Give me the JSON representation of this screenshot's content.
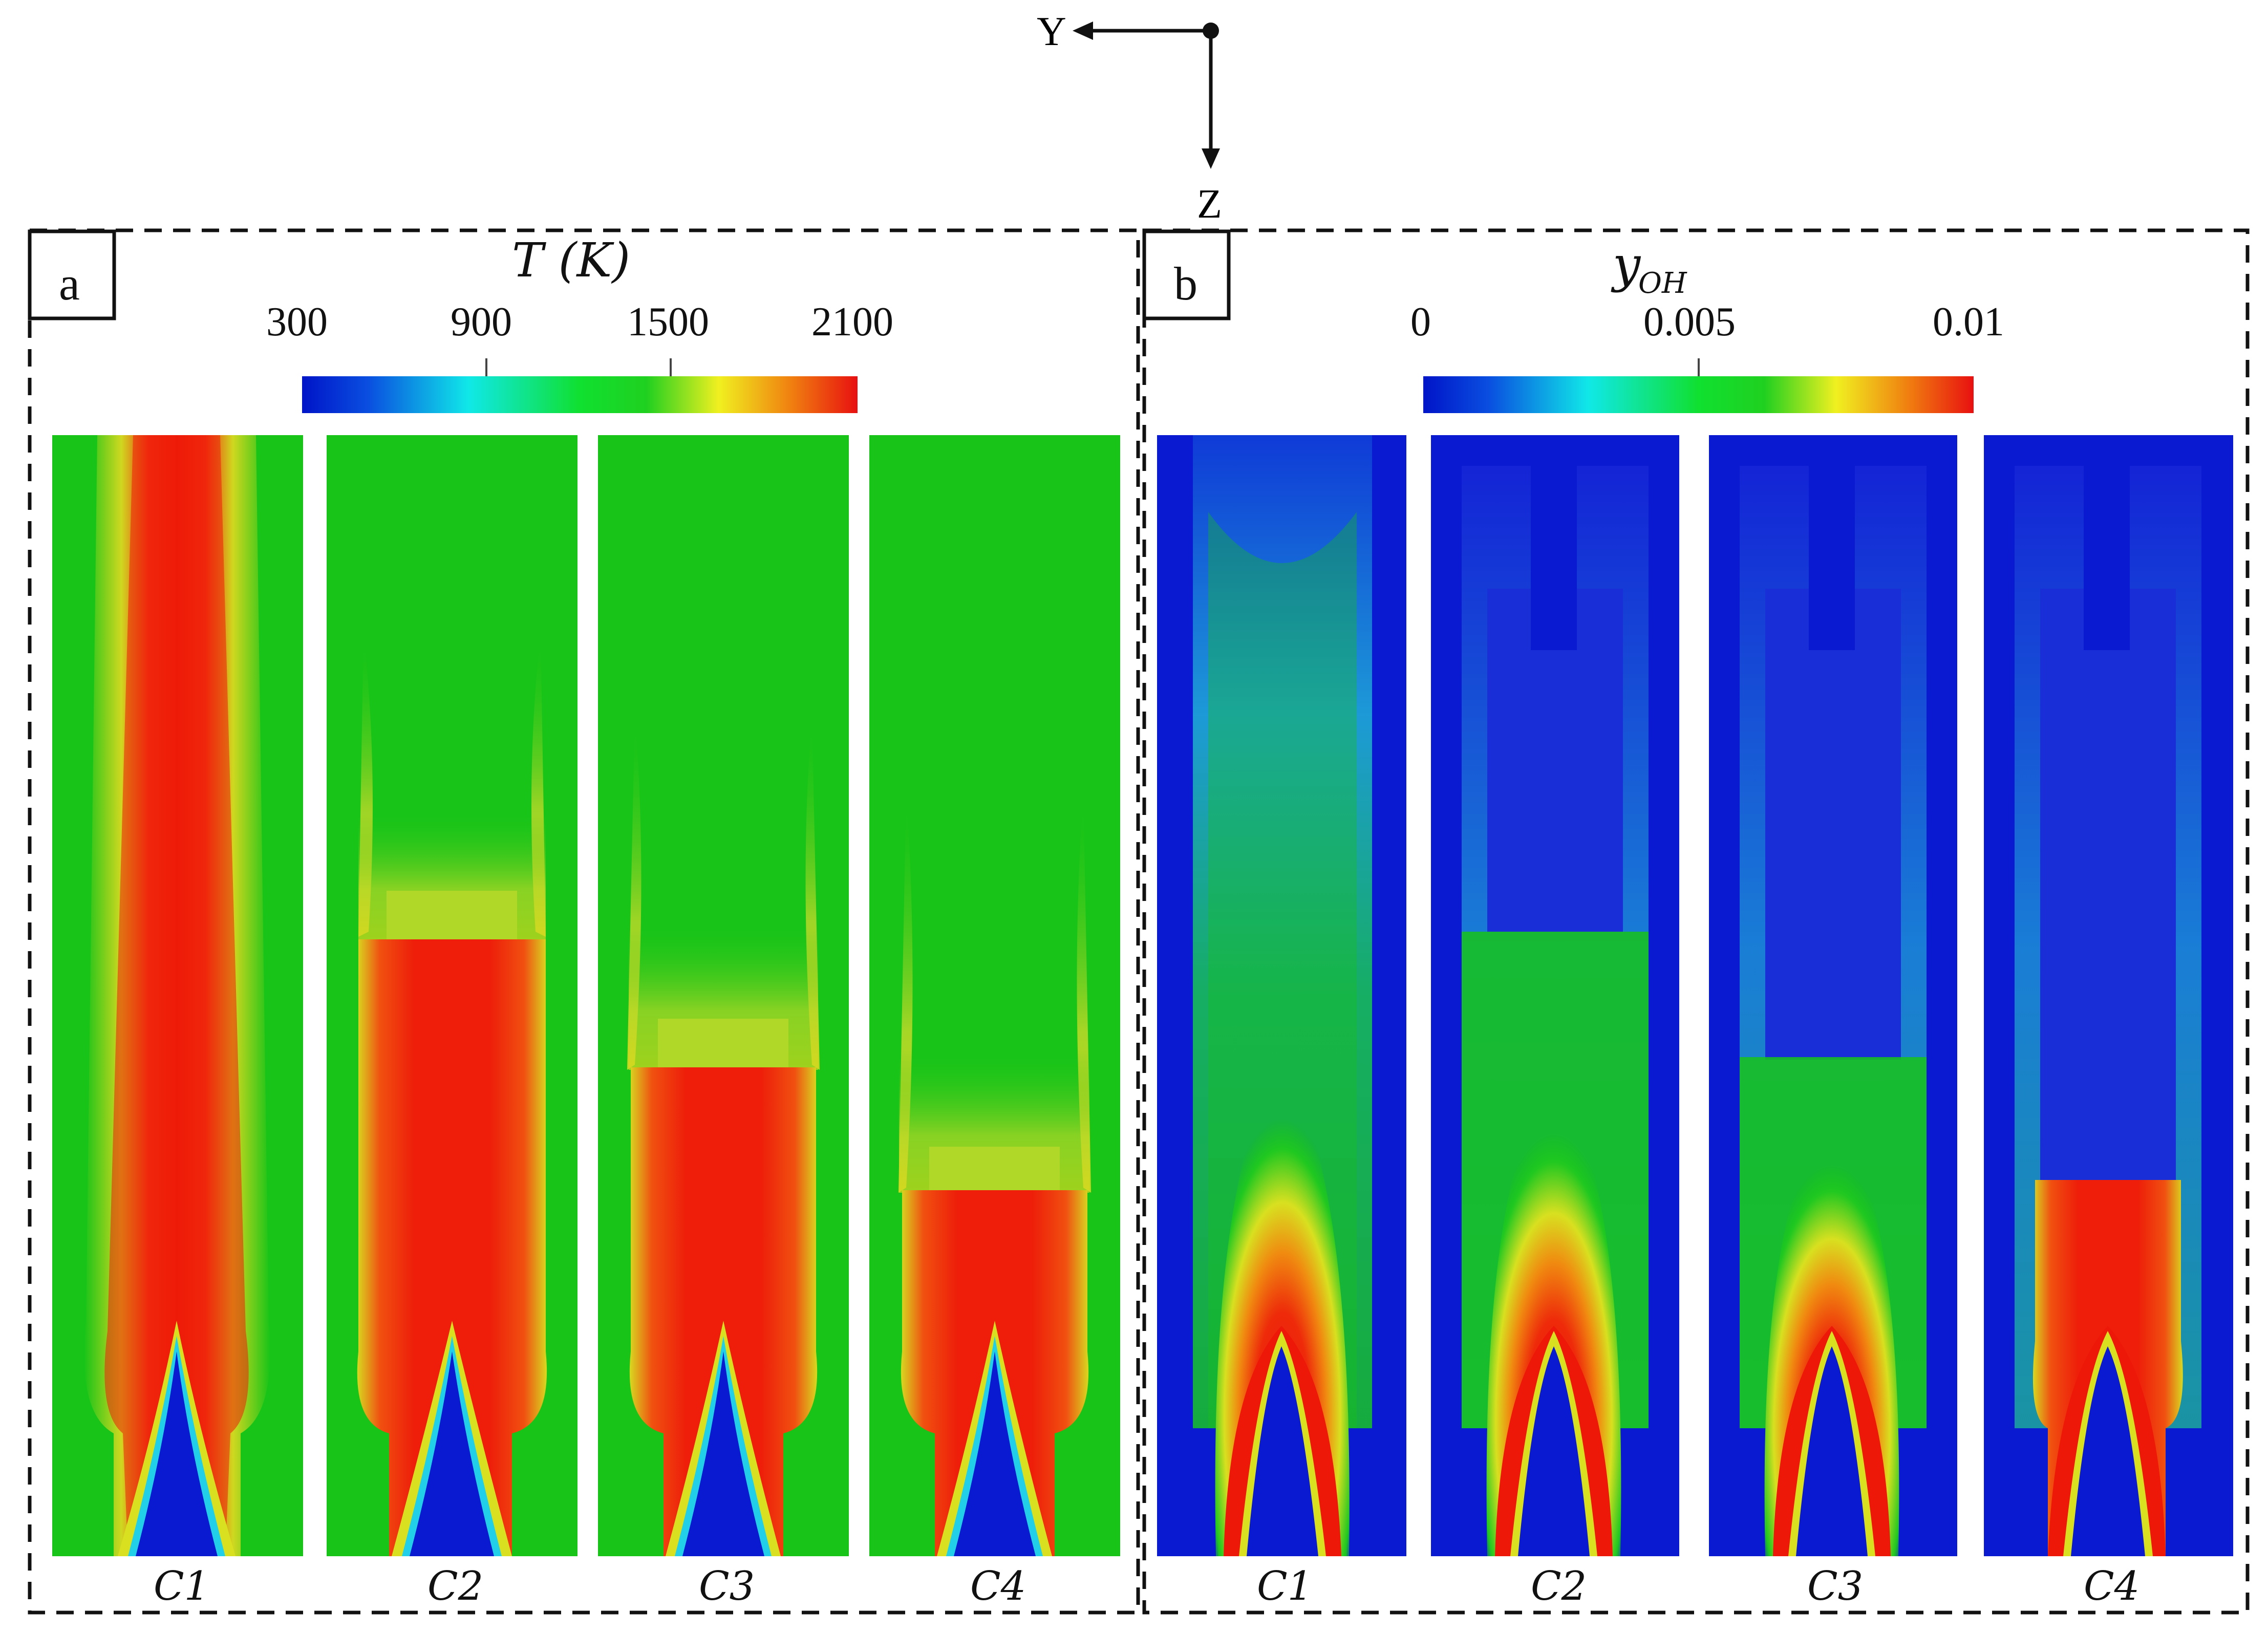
{
  "axes": {
    "y_label": "Y",
    "z_label": "Z"
  },
  "panel_a": {
    "letter": "a",
    "colorbar_title_main": "T (K)",
    "ticks": [
      "300",
      "900",
      "1500",
      "2100"
    ],
    "cases": [
      "C1",
      "C2",
      "C3",
      "C4"
    ]
  },
  "panel_b": {
    "letter": "b",
    "colorbar_title_main": "y",
    "colorbar_title_sub": "OH",
    "ticks": [
      "0",
      "0.005",
      "0.01"
    ],
    "cases": [
      "C1",
      "C2",
      "C3",
      "C4"
    ]
  },
  "colors": {
    "blue": "#0a1ad0",
    "green": "#12c212",
    "red": "#ee1e0a",
    "yellow": "#d8e020",
    "orange": "#f08a10",
    "cyan": "#22cfe8"
  },
  "colormap": [
    "blue-icon",
    "cyan",
    "green",
    "yellow",
    "red"
  ]
}
